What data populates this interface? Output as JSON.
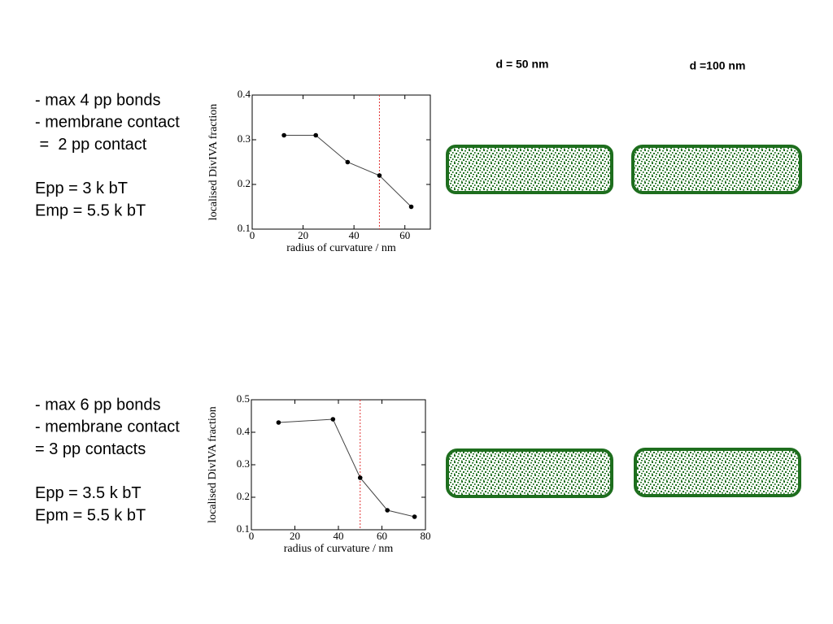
{
  "columns": [
    "d = 50 nm",
    "d =100 nm"
  ],
  "rows": [
    {
      "constraints": [
        "- max 4 pp bonds",
        "- membrane contact",
        " =  2 pp contact"
      ],
      "energies": [
        "Epp = 3 k bT",
        "Emp = 5.5 k bT"
      ]
    },
    {
      "constraints": [
        "- max 6 pp bonds",
        "- membrane contact",
        "= 3 pp contacts"
      ],
      "energies": [
        "Epp = 3.5 k bT",
        "Epm = 5.5 k bT"
      ]
    }
  ],
  "chart_data": [
    {
      "type": "line",
      "x_label": "radius of curvature / nm",
      "y_label": "localised DivIVA fraction",
      "x": [
        12.5,
        25,
        37.5,
        50,
        62.5
      ],
      "values": [
        0.31,
        0.31,
        0.25,
        0.22,
        0.15
      ],
      "color": "#000000",
      "xlim": [
        0,
        70
      ],
      "xticks": [
        0,
        20,
        40,
        60
      ],
      "ylim": [
        0.1,
        0.4
      ],
      "yticks": [
        0.1,
        0.2,
        0.3,
        0.4
      ],
      "vline": 50,
      "vline_color": "#e03030"
    },
    {
      "type": "line",
      "x_label": "radius of curvature / nm",
      "y_label": "localised DivIVA fraction",
      "x": [
        12.5,
        37.5,
        50,
        62.5,
        75
      ],
      "values": [
        0.43,
        0.44,
        0.26,
        0.16,
        0.14
      ],
      "color": "#000000",
      "xlim": [
        0,
        80
      ],
      "xticks": [
        0,
        20,
        40,
        60,
        80
      ],
      "ylim": [
        0.1,
        0.5
      ],
      "yticks": [
        0.1,
        0.2,
        0.3,
        0.4,
        0.5
      ],
      "vline": 50,
      "vline_color": "#e03030"
    }
  ]
}
